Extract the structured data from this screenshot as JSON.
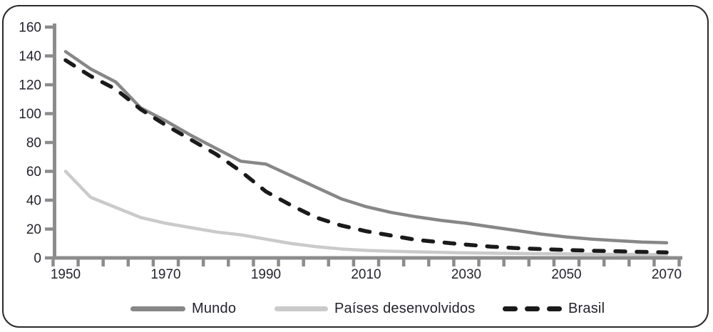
{
  "colors": {
    "mundo": "#878787",
    "paises_desenvolvidos": "#cacaca",
    "brasil": "#1a1a1a",
    "axis": "#8c8c8c",
    "text": "#23232d",
    "border": "#2b2b2b",
    "background": "#ffffff"
  },
  "chart_data": {
    "type": "line",
    "x": [
      1950,
      1955,
      1960,
      1965,
      1970,
      1975,
      1980,
      1985,
      1990,
      1995,
      2000,
      2005,
      2010,
      2015,
      2020,
      2025,
      2030,
      2035,
      2040,
      2045,
      2050,
      2055,
      2060,
      2065,
      2070
    ],
    "series": [
      {
        "name": "Mundo",
        "style": "solid",
        "color": "#878787",
        "values": [
          143,
          131,
          122,
          104,
          95,
          85,
          76,
          67,
          65,
          57,
          49,
          41,
          35.5,
          31.5,
          28.5,
          26,
          24,
          21.5,
          19,
          16.5,
          14.5,
          13,
          12,
          11,
          10.5
        ]
      },
      {
        "name": "Países desenvolvidos",
        "style": "solid",
        "color": "#cacaca",
        "values": [
          60,
          42,
          35,
          28,
          24,
          21,
          18,
          16,
          13,
          10,
          7.8,
          6.2,
          5.2,
          4.6,
          4.2,
          3.8,
          3.5,
          3.3,
          3.1,
          2.9,
          2.8,
          2.6,
          2.5,
          2.4,
          2.3
        ]
      },
      {
        "name": "Brasil",
        "style": "dashed",
        "color": "#1a1a1a",
        "values": [
          137,
          126,
          117,
          103,
          92,
          82,
          72,
          60,
          46,
          36.5,
          28,
          22.5,
          18.5,
          15.5,
          12.5,
          10.8,
          9.2,
          7.8,
          6.8,
          6.1,
          5.5,
          5.0,
          4.6,
          4.2,
          3.8
        ]
      }
    ],
    "title": "",
    "xlabel": "",
    "ylabel": "",
    "ylim": [
      0,
      160
    ],
    "y_ticks": [
      0,
      20,
      40,
      60,
      80,
      100,
      120,
      140,
      160
    ],
    "x_axis_labels": [
      "1950",
      "1970",
      "1990",
      "2010",
      "2030",
      "2050",
      "2070"
    ],
    "x_minor_tick_step_years": 5,
    "grid": false,
    "legend_position": "bottom"
  }
}
